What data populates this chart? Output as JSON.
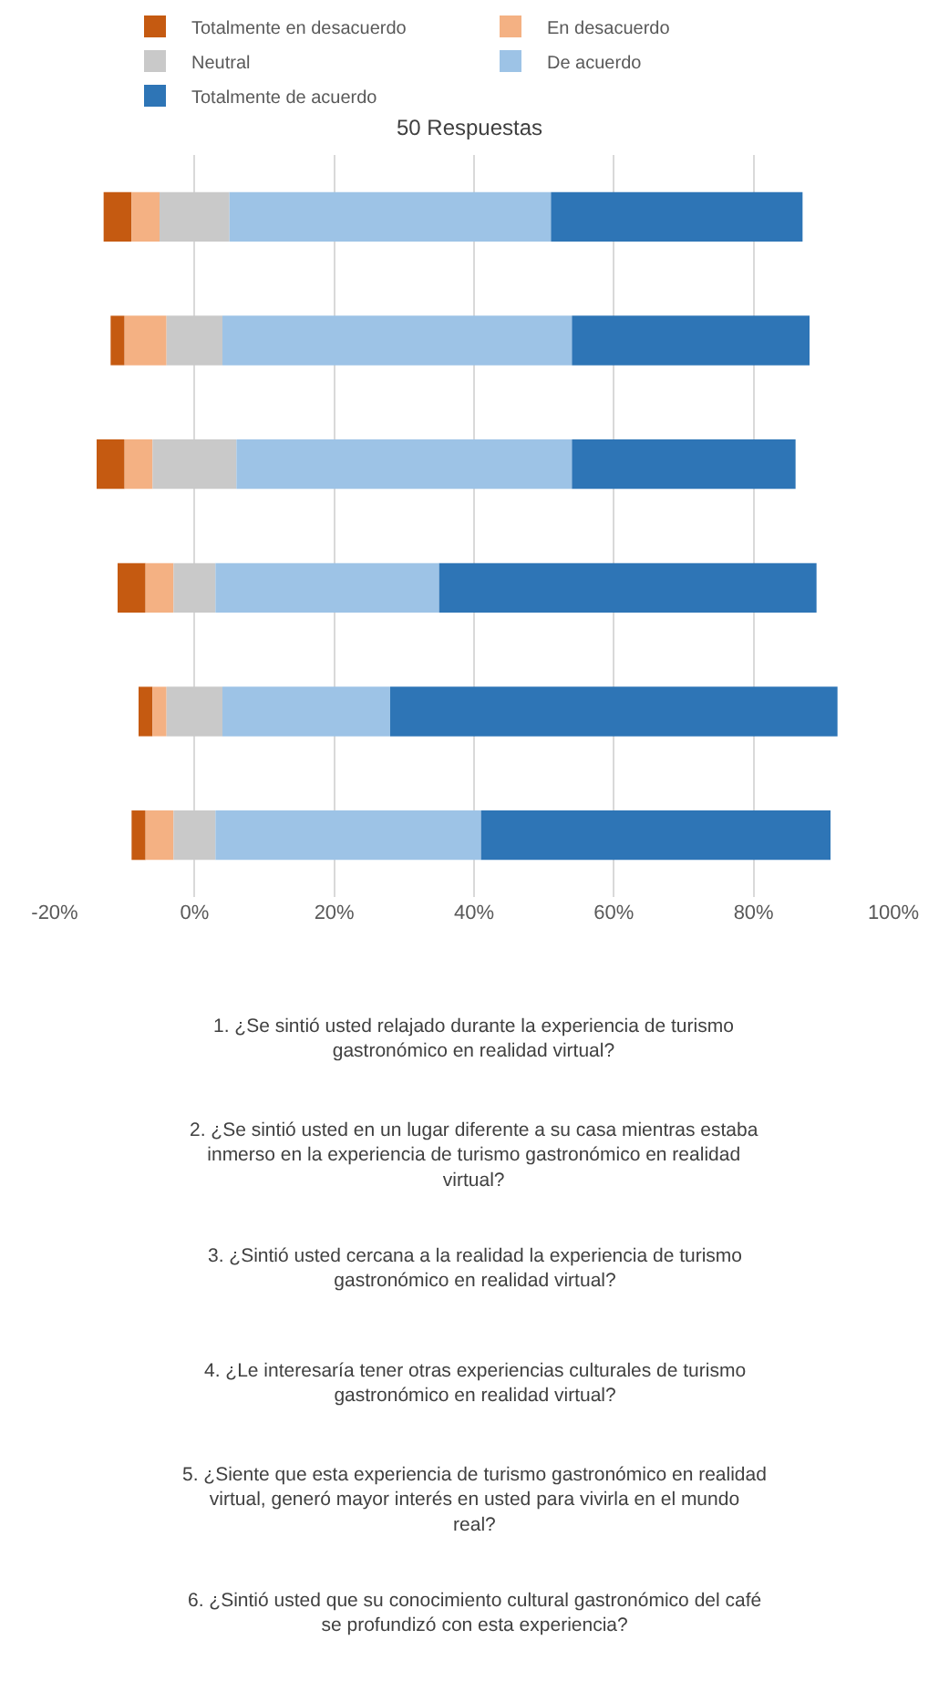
{
  "chart_data": {
    "type": "bar",
    "orientation": "horizontal",
    "title": "50 Respuestas",
    "categories": [
      null,
      null,
      null,
      null,
      null,
      null
    ],
    "series": [
      {
        "name": "Totalmente en desacuerdo",
        "color": "#c55a11",
        "values": [
          4,
          2,
          4,
          4,
          2,
          2
        ],
        "base": [
          -13,
          -12,
          -14,
          -11,
          -8,
          -9
        ]
      },
      {
        "name": "En desacuerdo",
        "color": "#f4b183",
        "values": [
          4,
          6,
          4,
          4,
          2,
          4
        ],
        "base": [
          -9,
          -10,
          -10,
          -7,
          -6,
          -7
        ]
      },
      {
        "name": "Neutral",
        "color": "#c9c9c9",
        "values": [
          10,
          8,
          12,
          6,
          8,
          6
        ],
        "base": [
          -5,
          -4,
          -6,
          -3,
          -4,
          -3
        ]
      },
      {
        "name": "De acuerdo",
        "color": "#9dc3e6",
        "values": [
          46,
          50,
          48,
          32,
          24,
          38
        ],
        "base": [
          5,
          4,
          6,
          3,
          4,
          3
        ]
      },
      {
        "name": "Totalmente de acuerdo",
        "color": "#2e75b6",
        "values": [
          36,
          34,
          32,
          54,
          64,
          50
        ],
        "base": [
          51,
          54,
          54,
          35,
          28,
          41
        ]
      }
    ],
    "xlim": [
      -20,
      100
    ],
    "xticks": [
      {
        "value": -20,
        "label": "-20%"
      },
      {
        "value": 0,
        "label": "0%"
      },
      {
        "value": 20,
        "label": "20%"
      },
      {
        "value": 40,
        "label": "40%"
      },
      {
        "value": 60,
        "label": "60%"
      },
      {
        "value": 80,
        "label": "80%"
      },
      {
        "value": 100,
        "label": "100%"
      }
    ],
    "grid": "x",
    "legend": "top",
    "tick_labels": "x",
    "annotations": [
      "1. ¿Se sintió usted relajado durante la experiencia de turismo gastronómico en realidad virtual?",
      "2. ¿Se sintió usted en un lugar diferente a su casa mientras estaba inmerso en la experiencia de turismo gastronómico en realidad virtual?",
      "3. ¿Sintió usted cercana a la realidad la experiencia de turismo gastronómico en realidad virtual?",
      "4. ¿Le interesaría tener otras experiencias culturales de turismo gastronómico en realidad virtual?",
      "5. ¿Siente que esta experiencia de turismo gastronómico en realidad virtual, generó mayor interés en usted para vivirla en el mundo real?",
      "6. ¿Sintió usted que su conocimiento cultural gastronómico del café se profundizó con esta experiencia?"
    ]
  }
}
